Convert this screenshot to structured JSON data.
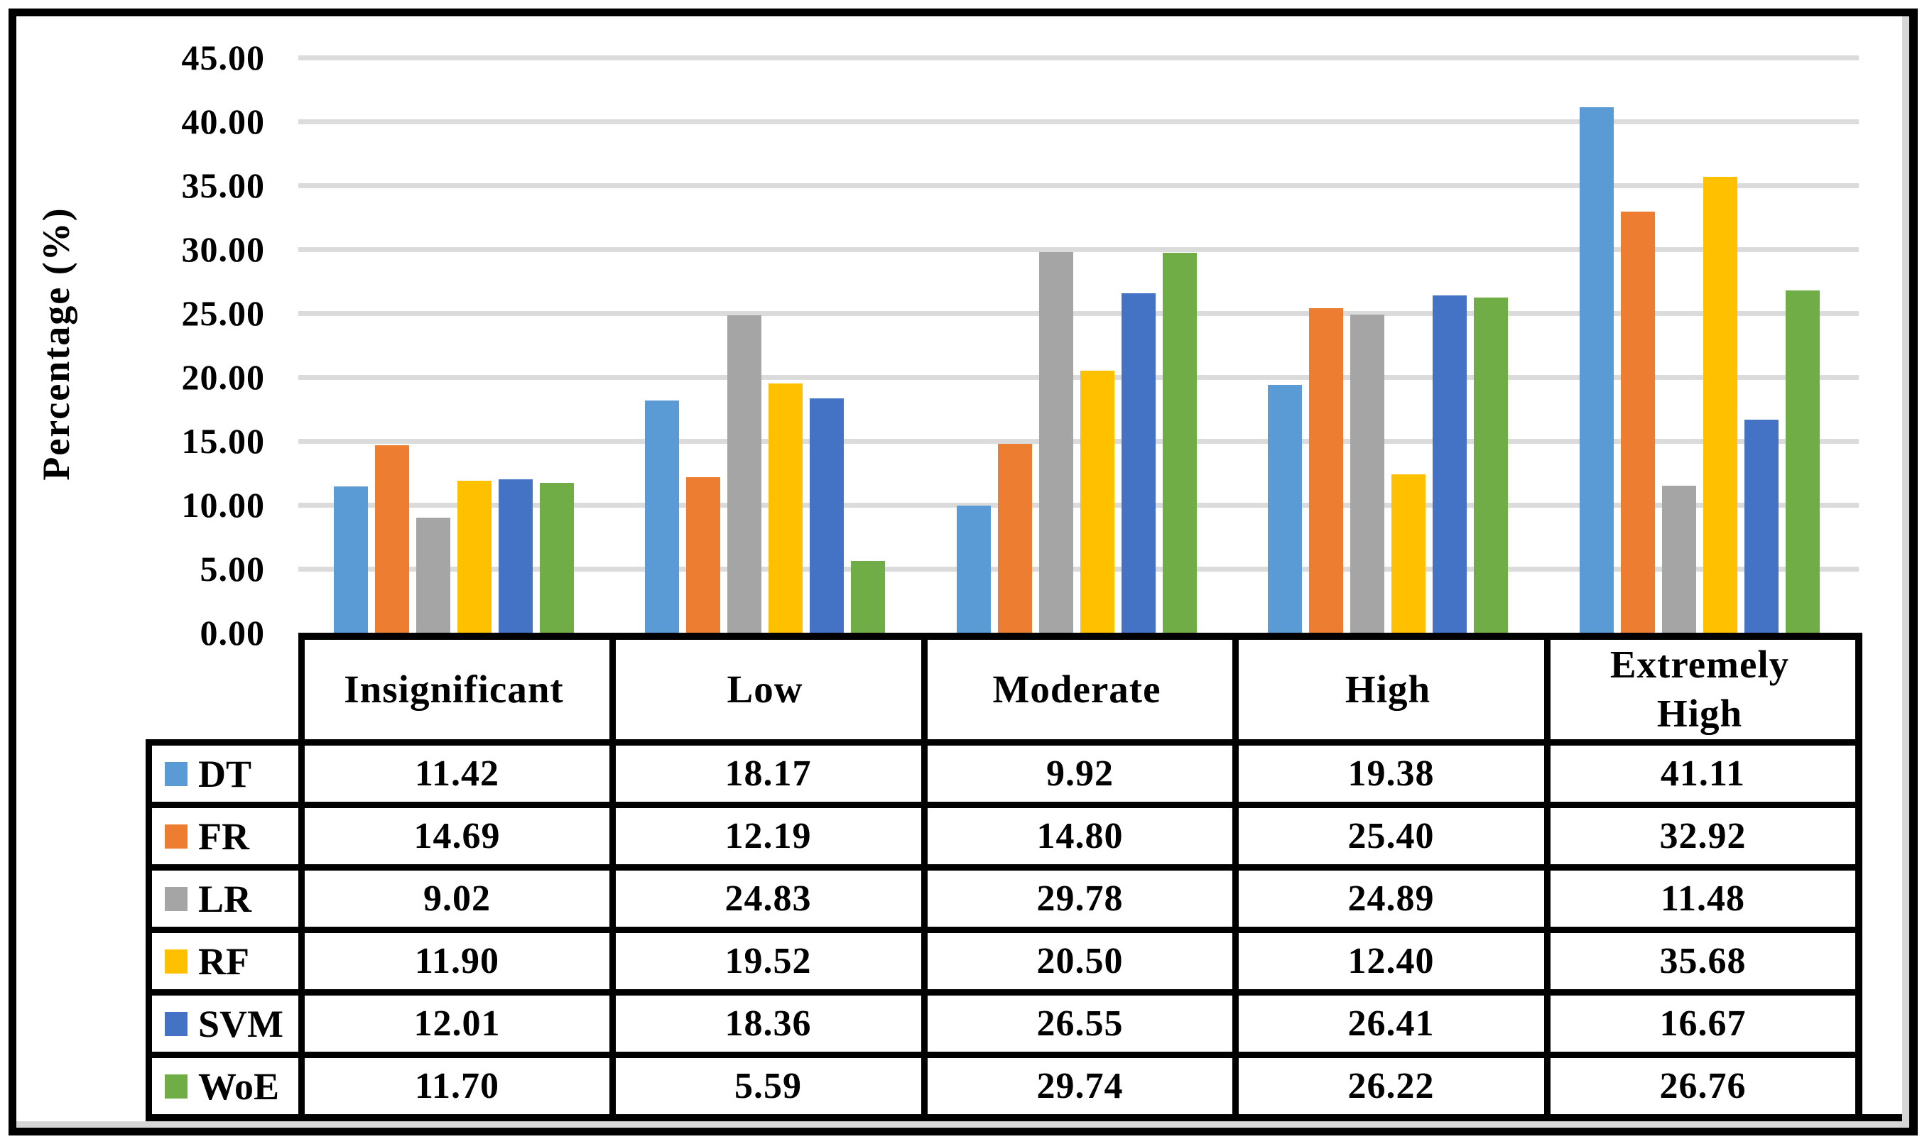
{
  "chart_data": {
    "type": "bar",
    "title": "",
    "xlabel": "",
    "ylabel": "Percentage (%)",
    "categories": [
      "Insignificant",
      "Low",
      "Moderate",
      "High",
      "Extremely High"
    ],
    "series": [
      {
        "name": "DT",
        "color": "#5B9BD5",
        "values": [
          11.42,
          18.17,
          9.92,
          19.38,
          41.11
        ]
      },
      {
        "name": "FR",
        "color": "#ED7D31",
        "values": [
          14.69,
          12.19,
          14.8,
          25.4,
          32.92
        ]
      },
      {
        "name": "LR",
        "color": "#A5A5A5",
        "values": [
          9.02,
          24.83,
          29.78,
          24.89,
          11.48
        ]
      },
      {
        "name": "RF",
        "color": "#FFC000",
        "values": [
          11.9,
          19.52,
          20.5,
          12.4,
          35.68
        ]
      },
      {
        "name": "SVM",
        "color": "#4472C4",
        "values": [
          12.01,
          18.36,
          26.55,
          26.41,
          16.67
        ]
      },
      {
        "name": "WoE",
        "color": "#70AD47",
        "values": [
          11.7,
          5.59,
          29.74,
          26.22,
          26.76
        ]
      }
    ],
    "y_axis": {
      "min": 0,
      "max": 45,
      "step": 5,
      "tick_decimals": 2
    },
    "grid": true,
    "legend_position": "data-table-left-column",
    "data_table_shown": true,
    "value_decimals": 2
  },
  "styles": {
    "background": "#FFFFFF",
    "border_color": "#000000",
    "gridline_color": "#DBDBDB",
    "shadow_color": "#D6D6D6",
    "text_color": "#000000"
  }
}
